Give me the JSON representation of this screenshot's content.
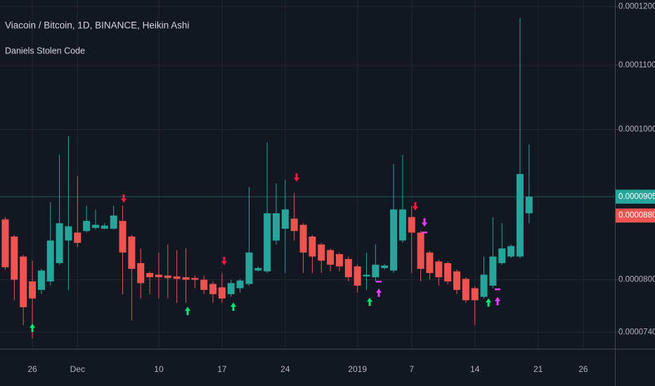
{
  "chart_data": {
    "type": "candlestick",
    "title": "Viacoin / Bitcoin, 1D, BINANCE, Heikin Ashi",
    "subtitle": "Daniels Stolen Code",
    "log_scale": true,
    "grid": true,
    "up_color": "#26a69a",
    "down_color": "#ef5350",
    "ylim": [
      7.22e-05,
      0.0001212
    ],
    "yticks": [
      {
        "value": 0.00012,
        "label": "0.0001200"
      },
      {
        "value": 0.00011,
        "label": "0.0001100"
      },
      {
        "value": 0.0001,
        "label": "0.0001000"
      },
      {
        "value": 8e-05,
        "label": "0.0000800"
      },
      {
        "value": 7.4e-05,
        "label": "0.0000740"
      }
    ],
    "price_labels": [
      {
        "value": 9.05e-05,
        "label": "0.0000905",
        "color": "#26a69a",
        "line": true
      },
      {
        "value": 8.8e-05,
        "label": "0.0000880",
        "color": "#ef5350",
        "line": false
      }
    ],
    "categories": [
      null,
      null,
      null,
      "26",
      null,
      null,
      null,
      null,
      "Dec",
      null,
      null,
      null,
      null,
      null,
      null,
      null,
      null,
      "10",
      null,
      null,
      null,
      null,
      null,
      null,
      "17",
      null,
      null,
      null,
      null,
      null,
      null,
      "24",
      null,
      null,
      null,
      null,
      null,
      null,
      null,
      "2019",
      null,
      null,
      null,
      null,
      null,
      "7",
      null,
      null,
      null,
      null,
      null,
      null,
      "14",
      null,
      null,
      null,
      null,
      null,
      null,
      "21",
      null,
      null,
      null,
      null,
      "26",
      null,
      null
    ],
    "open": [
      8.75e-05,
      8.53e-05,
      8.28e-05,
      7.98e-05,
      7.88e-05,
      7.98e-05,
      8.2e-05,
      8.48e-05,
      8.58e-05,
      8.6e-05,
      8.64e-05,
      8.63e-05,
      8.63e-05,
      8.73e-05,
      8.53e-05,
      8.2e-05,
      8.08e-05,
      8.06e-05,
      8.05e-05,
      8.04e-05,
      8.03e-05,
      8.02e-05,
      8e-05,
      7.95e-05,
      7.91e-05,
      7.83e-05,
      7.9e-05,
      7.95e-05,
      8.11e-05,
      8.1e-05,
      8.48e-05,
      8.63e-05,
      8.76e-05,
      8.68e-05,
      8.53e-05,
      8.43e-05,
      8.36e-05,
      8.31e-05,
      8.25e-05,
      8.16e-05,
      8.04e-05,
      8.03e-05,
      8.14e-05,
      8.11e-05,
      8.48e-05,
      8.78e-05,
      8.58e-05,
      8.33e-05,
      8.22e-05,
      8.2e-05,
      8.1e-05,
      8.01e-05,
      7.9e-05,
      7.8e-05,
      7.93e-05,
      8.2e-05,
      8.28e-05,
      8.28e-05,
      8.83e-05,
      null,
      null,
      null,
      null,
      null,
      null,
      null,
      null
    ],
    "high": [
      8.78e-05,
      8.55e-05,
      8.3e-05,
      8.23e-05,
      8.13e-05,
      8.98e-05,
      9.63e-05,
      9.9e-05,
      9.33e-05,
      8.93e-05,
      8.88e-05,
      8.7e-05,
      8.93e-05,
      8.93e-05,
      8.55e-05,
      8.38e-05,
      8.1e-05,
      8.33e-05,
      8.43e-05,
      8.36e-05,
      8.38e-05,
      8.05e-05,
      8.05e-05,
      7.98e-05,
      8.08e-05,
      8e-05,
      8.01e-05,
      9.18e-05,
      8.16e-05,
      9.81e-05,
      9.23e-05,
      9.28e-05,
      9.1e-05,
      8.7e-05,
      8.55e-05,
      8.45e-05,
      8.38e-05,
      8.33e-05,
      8.28e-05,
      8.18e-05,
      8.33e-05,
      8.43e-05,
      8.19e-05,
      9.5e-05,
      9.63e-05,
      8.93e-05,
      8.6e-05,
      8.35e-05,
      8.24e-05,
      8.22e-05,
      8.12e-05,
      8.03e-05,
      7.92e-05,
      8.28e-05,
      8.78e-05,
      8.7e-05,
      8.43e-05,
      0.000118,
      9.78e-05,
      null,
      null,
      null,
      null,
      null,
      null,
      null,
      null
    ],
    "low": [
      8.12e-05,
      7.76e-05,
      7.48e-05,
      7.33e-05,
      7.83e-05,
      7.93e-05,
      8.18e-05,
      7.88e-05,
      8.4e-05,
      8.58e-05,
      8.62e-05,
      8.62e-05,
      8.62e-05,
      7.83e-05,
      7.53e-05,
      7.78e-05,
      7.83e-05,
      7.78e-05,
      7.78e-05,
      7.73e-05,
      7.73e-05,
      7.9e-05,
      7.83e-05,
      7.73e-05,
      7.73e-05,
      7.8e-05,
      7.85e-05,
      7.93e-05,
      8.1e-05,
      8.08e-05,
      8.43e-05,
      8.08e-05,
      8.48e-05,
      8.08e-05,
      8.08e-05,
      8.08e-05,
      8.1e-05,
      8.1e-05,
      7.98e-05,
      7.85e-05,
      7.88e-05,
      7.98e-05,
      8.12e-05,
      8.08e-05,
      8.45e-05,
      8.08e-05,
      7.98e-05,
      8e-05,
      7.93e-05,
      7.95e-05,
      7.83e-05,
      7.73e-05,
      7.48e-05,
      7.78e-05,
      7.9e-05,
      8.18e-05,
      8.26e-05,
      8.26e-05,
      8.7e-05,
      null,
      null,
      null,
      null,
      null,
      null,
      null,
      null
    ],
    "close": [
      8.15e-05,
      8e-05,
      7.68e-05,
      7.78e-05,
      8.11e-05,
      8.48e-05,
      8.7e-05,
      8.66e-05,
      8.45e-05,
      8.73e-05,
      8.68e-05,
      8.67e-05,
      8.8e-05,
      8.33e-05,
      8.13e-05,
      7.96e-05,
      8.03e-05,
      8.03e-05,
      8.02e-05,
      8.01e-05,
      8e-05,
      8e-05,
      7.88e-05,
      7.83e-05,
      7.78e-05,
      7.96e-05,
      7.99e-05,
      8.33e-05,
      8.14e-05,
      8.83e-05,
      8.83e-05,
      8.88e-05,
      8.6e-05,
      8.33e-05,
      8.28e-05,
      8.23e-05,
      8.18e-05,
      8.16e-05,
      8.03e-05,
      7.93e-05,
      8.06e-05,
      8.18e-05,
      8.17e-05,
      8.88e-05,
      8.88e-05,
      8.58e-05,
      8.13e-05,
      8.08e-05,
      8.03e-05,
      7.98e-05,
      7.88e-05,
      7.76e-05,
      7.76e-05,
      8.06e-05,
      8.28e-05,
      8.38e-05,
      8.41e-05,
      9.36e-05,
      9.05e-05,
      null,
      null,
      null,
      null,
      null,
      null,
      null,
      null
    ]
  }
}
